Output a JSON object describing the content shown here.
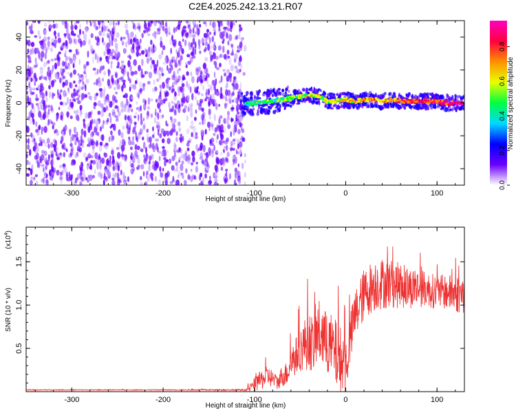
{
  "title": "C2E4.2025.242.13.21.R07",
  "chart_data": [
    {
      "type": "heatmap",
      "name": "spectrogram",
      "xlabel": "Height of straight line (km)",
      "ylabel": "Frequency (Hz)",
      "xlim": [
        -350,
        130
      ],
      "ylim": [
        -50,
        50
      ],
      "xticks": [
        -300,
        -200,
        -100,
        0,
        100
      ],
      "xtick_labels": [
        "-300",
        "-200",
        "-100",
        "0",
        "100"
      ],
      "yticks": [
        -40,
        -20,
        0,
        20,
        40
      ],
      "ytick_labels": [
        "-40",
        "-20",
        "0",
        "20",
        "40"
      ],
      "noise_region_x": [
        -350,
        -110
      ],
      "signal_band_x": [
        -115,
        130
      ],
      "signal_trace": {
        "x": [
          -115,
          -100,
          -90,
          -80,
          -70,
          -60,
          -50,
          -40,
          -30,
          -20,
          -10,
          0,
          10,
          20,
          30,
          40,
          50,
          60,
          70,
          80,
          90,
          100,
          110,
          120,
          130
        ],
        "y": [
          -1,
          0,
          0.5,
          1,
          2,
          3,
          4,
          5,
          4,
          1,
          1,
          2,
          1,
          2,
          2,
          1,
          2,
          1,
          1,
          1,
          1,
          1,
          0,
          0,
          0
        ]
      },
      "colorbar": {
        "label": "Normalized spectral amplitude",
        "range": [
          0,
          0.95
        ],
        "ticks": [
          0.0,
          0.2,
          0.4,
          0.6,
          0.8
        ],
        "tick_labels": [
          "0.0",
          "0.2",
          "0.4",
          "0.6",
          "0.8"
        ],
        "colors": [
          "#ffffff",
          "#6a00ff",
          "#0000ff",
          "#00d8ff",
          "#00ff40",
          "#e8ff00",
          "#ff9000",
          "#ff0040",
          "#ff00c0"
        ]
      }
    },
    {
      "type": "line",
      "name": "snr",
      "xlabel": "Height of straight line (km)",
      "ylabel": "SNR (10 * v/v)",
      "y_multiplier": "(x10",
      "y_multiplier_exp": "4",
      "y_multiplier_close": ")",
      "xlim": [
        -350,
        130
      ],
      "ylim": [
        0,
        1.9
      ],
      "xticks": [
        -300,
        -200,
        -100,
        0,
        100
      ],
      "xtick_labels": [
        "-300",
        "-200",
        "-100",
        "0",
        "100"
      ],
      "yticks": [
        0.5,
        1.0,
        1.5
      ],
      "ytick_labels": [
        "0.5",
        "1.0",
        "1.5"
      ],
      "color": "#ee3333",
      "envelope": {
        "x": [
          -350,
          -200,
          -110,
          -105,
          -100,
          -95,
          -90,
          -85,
          -80,
          -75,
          -70,
          -65,
          -60,
          -55,
          -50,
          -45,
          -40,
          -35,
          -30,
          -25,
          -20,
          -15,
          -10,
          -5,
          0,
          5,
          10,
          15,
          20,
          25,
          30,
          35,
          40,
          50,
          60,
          70,
          80,
          90,
          100,
          110,
          120,
          130
        ],
        "base": [
          0.02,
          0.02,
          0.02,
          0.04,
          0.08,
          0.12,
          0.15,
          0.18,
          0.15,
          0.1,
          0.18,
          0.2,
          0.35,
          0.4,
          0.48,
          0.55,
          0.6,
          0.52,
          0.7,
          0.62,
          0.55,
          0.5,
          0.42,
          0.35,
          0.3,
          0.6,
          0.88,
          1.0,
          1.12,
          1.18,
          1.22,
          1.25,
          1.25,
          1.25,
          1.22,
          1.2,
          1.2,
          1.18,
          1.15,
          1.15,
          1.13,
          1.12
        ],
        "spread": [
          0.005,
          0.005,
          0.01,
          0.04,
          0.08,
          0.1,
          0.12,
          0.12,
          0.1,
          0.08,
          0.12,
          0.14,
          0.2,
          0.22,
          0.25,
          0.3,
          0.35,
          0.3,
          0.38,
          0.38,
          0.35,
          0.4,
          0.4,
          0.4,
          0.35,
          0.3,
          0.3,
          0.3,
          0.3,
          0.3,
          0.3,
          0.3,
          0.3,
          0.28,
          0.26,
          0.24,
          0.22,
          0.2,
          0.2,
          0.2,
          0.22,
          0.22
        ]
      }
    }
  ]
}
